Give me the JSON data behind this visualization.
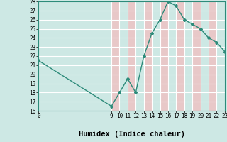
{
  "x": [
    0,
    9,
    10,
    11,
    12,
    13,
    14,
    15,
    16,
    17,
    18,
    19,
    20,
    21,
    22,
    23
  ],
  "y": [
    21.5,
    16.5,
    18.0,
    19.5,
    18.0,
    22.0,
    24.5,
    26.0,
    28.0,
    27.5,
    26.0,
    25.5,
    25.0,
    24.0,
    23.5,
    22.5
  ],
  "line_color": "#2d8b7a",
  "marker_color": "#2d8b7a",
  "bg_color": "#cde8e4",
  "plot_bg_color": "#cde8e4",
  "grid_color": "#ffffff",
  "pink_band_color": "#e8c8c8",
  "xlabel": "Humidex (Indice chaleur)",
  "xlim": [
    0,
    23
  ],
  "ylim": [
    16,
    28
  ],
  "xticks": [
    0,
    9,
    10,
    11,
    12,
    13,
    14,
    15,
    16,
    17,
    18,
    19,
    20,
    21,
    22,
    23
  ],
  "yticks": [
    16,
    17,
    18,
    19,
    20,
    21,
    22,
    23,
    24,
    25,
    26,
    27,
    28
  ],
  "pink_bands_x": [
    9,
    10,
    11,
    12,
    13,
    14,
    15,
    16,
    17,
    18,
    19,
    20,
    21,
    22,
    23
  ]
}
